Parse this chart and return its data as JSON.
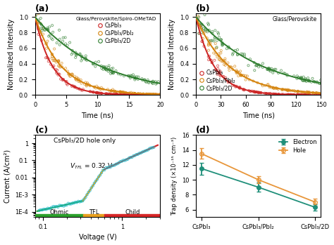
{
  "panel_a": {
    "title": "(a)",
    "legend_title": "Glass/Perovskite/Spiro-OMeTAD",
    "xlabel": "Time (ns)",
    "ylabel": "Normalized Intensity",
    "xlim": [
      0,
      20
    ],
    "ylim": [
      0,
      1.05
    ],
    "xticks": [
      0,
      5,
      10,
      15,
      20
    ],
    "colors": [
      "#cc2222",
      "#d4820a",
      "#2d7d2d"
    ],
    "tau": [
      2.8,
      4.2,
      10.5
    ],
    "labels": [
      "CsPbI₃",
      "CsPbI₃/PbI₂",
      "CsPbI₃/2D"
    ]
  },
  "panel_b": {
    "title": "(b)",
    "legend_title": "Glass/Perovskite",
    "xlabel": "Time (ns)",
    "ylabel": "Normalized Intensity",
    "xlim": [
      0,
      150
    ],
    "ylim": [
      0,
      1.05
    ],
    "xticks": [
      0,
      30,
      60,
      90,
      120,
      150
    ],
    "colors": [
      "#cc2222",
      "#d4820a",
      "#2d7d2d"
    ],
    "tau": [
      22.0,
      40.0,
      80.0
    ],
    "labels": [
      "CsPbI₃",
      "CsPbI₃/PbI₂",
      "CsPbI₃/2D"
    ]
  },
  "panel_c": {
    "title": "(c)",
    "annotation": "CsPbI₃/2D hole only",
    "vtfl_label": "V⁔ⁱₗ = 0.32 V",
    "xlabel": "Voltage (V)",
    "ylabel": "Current (A/cm²)",
    "xlim": [
      0.08,
      3.0
    ],
    "ylim": [
      5e-05,
      3.0
    ],
    "regions": [
      {
        "label": "Ohmic",
        "color": "#2ca02c",
        "xstart": 0.08,
        "xend": 0.32
      },
      {
        "label": "TFL",
        "color": "#e8a020",
        "xstart": 0.32,
        "xend": 0.6
      },
      {
        "label": "Child",
        "color": "#d62728",
        "xstart": 0.6,
        "xend": 3.0
      }
    ],
    "vtfl": 0.32,
    "line_color": "#1ab8c8",
    "scatter_color": "#1ab8c8"
  },
  "panel_d": {
    "title": "(d)",
    "ylabel": "Trap density (×10⁻¹⁵ cm⁻³)",
    "categories": [
      "CsPbI₃",
      "CsPbI₃/PbI₂",
      "CsPbI₃/2D"
    ],
    "electron": {
      "values": [
        11.5,
        9.0,
        6.3
      ],
      "errors": [
        0.8,
        0.6,
        0.4
      ],
      "color": "#1f8f7a"
    },
    "hole": {
      "values": [
        13.5,
        10.0,
        7.0
      ],
      "errors": [
        0.7,
        0.5,
        0.5
      ],
      "color": "#e8963a"
    },
    "ylim": [
      5,
      16
    ],
    "yticks": [
      6,
      8,
      10,
      12,
      14,
      16
    ]
  }
}
